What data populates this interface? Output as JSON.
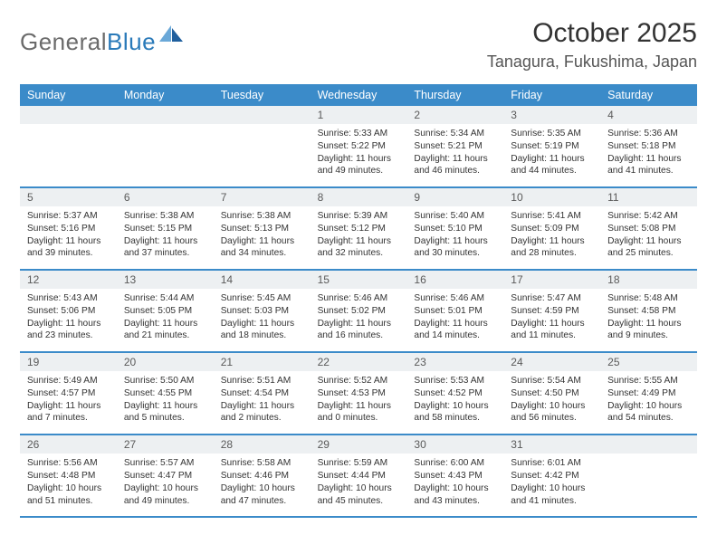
{
  "brand": {
    "name_a": "General",
    "name_b": "Blue"
  },
  "title": "October 2025",
  "location": "Tanagura, Fukushima, Japan",
  "day_names": [
    "Sunday",
    "Monday",
    "Tuesday",
    "Wednesday",
    "Thursday",
    "Friday",
    "Saturday"
  ],
  "colors": {
    "header_bg": "#3b8bc9",
    "header_text": "#ffffff",
    "daynum_bg": "#edf0f2",
    "border": "#3b8bc9",
    "body_text": "#333333",
    "logo_gray": "#6b6b6b",
    "logo_blue": "#2a7ab9",
    "sail_light": "#6aa8d8",
    "sail_dark": "#1f5f9e"
  },
  "weeks": [
    [
      {
        "n": "",
        "sr": "",
        "ss": "",
        "dl": ""
      },
      {
        "n": "",
        "sr": "",
        "ss": "",
        "dl": ""
      },
      {
        "n": "",
        "sr": "",
        "ss": "",
        "dl": ""
      },
      {
        "n": "1",
        "sr": "Sunrise: 5:33 AM",
        "ss": "Sunset: 5:22 PM",
        "dl": "Daylight: 11 hours and 49 minutes."
      },
      {
        "n": "2",
        "sr": "Sunrise: 5:34 AM",
        "ss": "Sunset: 5:21 PM",
        "dl": "Daylight: 11 hours and 46 minutes."
      },
      {
        "n": "3",
        "sr": "Sunrise: 5:35 AM",
        "ss": "Sunset: 5:19 PM",
        "dl": "Daylight: 11 hours and 44 minutes."
      },
      {
        "n": "4",
        "sr": "Sunrise: 5:36 AM",
        "ss": "Sunset: 5:18 PM",
        "dl": "Daylight: 11 hours and 41 minutes."
      }
    ],
    [
      {
        "n": "5",
        "sr": "Sunrise: 5:37 AM",
        "ss": "Sunset: 5:16 PM",
        "dl": "Daylight: 11 hours and 39 minutes."
      },
      {
        "n": "6",
        "sr": "Sunrise: 5:38 AM",
        "ss": "Sunset: 5:15 PM",
        "dl": "Daylight: 11 hours and 37 minutes."
      },
      {
        "n": "7",
        "sr": "Sunrise: 5:38 AM",
        "ss": "Sunset: 5:13 PM",
        "dl": "Daylight: 11 hours and 34 minutes."
      },
      {
        "n": "8",
        "sr": "Sunrise: 5:39 AM",
        "ss": "Sunset: 5:12 PM",
        "dl": "Daylight: 11 hours and 32 minutes."
      },
      {
        "n": "9",
        "sr": "Sunrise: 5:40 AM",
        "ss": "Sunset: 5:10 PM",
        "dl": "Daylight: 11 hours and 30 minutes."
      },
      {
        "n": "10",
        "sr": "Sunrise: 5:41 AM",
        "ss": "Sunset: 5:09 PM",
        "dl": "Daylight: 11 hours and 28 minutes."
      },
      {
        "n": "11",
        "sr": "Sunrise: 5:42 AM",
        "ss": "Sunset: 5:08 PM",
        "dl": "Daylight: 11 hours and 25 minutes."
      }
    ],
    [
      {
        "n": "12",
        "sr": "Sunrise: 5:43 AM",
        "ss": "Sunset: 5:06 PM",
        "dl": "Daylight: 11 hours and 23 minutes."
      },
      {
        "n": "13",
        "sr": "Sunrise: 5:44 AM",
        "ss": "Sunset: 5:05 PM",
        "dl": "Daylight: 11 hours and 21 minutes."
      },
      {
        "n": "14",
        "sr": "Sunrise: 5:45 AM",
        "ss": "Sunset: 5:03 PM",
        "dl": "Daylight: 11 hours and 18 minutes."
      },
      {
        "n": "15",
        "sr": "Sunrise: 5:46 AM",
        "ss": "Sunset: 5:02 PM",
        "dl": "Daylight: 11 hours and 16 minutes."
      },
      {
        "n": "16",
        "sr": "Sunrise: 5:46 AM",
        "ss": "Sunset: 5:01 PM",
        "dl": "Daylight: 11 hours and 14 minutes."
      },
      {
        "n": "17",
        "sr": "Sunrise: 5:47 AM",
        "ss": "Sunset: 4:59 PM",
        "dl": "Daylight: 11 hours and 11 minutes."
      },
      {
        "n": "18",
        "sr": "Sunrise: 5:48 AM",
        "ss": "Sunset: 4:58 PM",
        "dl": "Daylight: 11 hours and 9 minutes."
      }
    ],
    [
      {
        "n": "19",
        "sr": "Sunrise: 5:49 AM",
        "ss": "Sunset: 4:57 PM",
        "dl": "Daylight: 11 hours and 7 minutes."
      },
      {
        "n": "20",
        "sr": "Sunrise: 5:50 AM",
        "ss": "Sunset: 4:55 PM",
        "dl": "Daylight: 11 hours and 5 minutes."
      },
      {
        "n": "21",
        "sr": "Sunrise: 5:51 AM",
        "ss": "Sunset: 4:54 PM",
        "dl": "Daylight: 11 hours and 2 minutes."
      },
      {
        "n": "22",
        "sr": "Sunrise: 5:52 AM",
        "ss": "Sunset: 4:53 PM",
        "dl": "Daylight: 11 hours and 0 minutes."
      },
      {
        "n": "23",
        "sr": "Sunrise: 5:53 AM",
        "ss": "Sunset: 4:52 PM",
        "dl": "Daylight: 10 hours and 58 minutes."
      },
      {
        "n": "24",
        "sr": "Sunrise: 5:54 AM",
        "ss": "Sunset: 4:50 PM",
        "dl": "Daylight: 10 hours and 56 minutes."
      },
      {
        "n": "25",
        "sr": "Sunrise: 5:55 AM",
        "ss": "Sunset: 4:49 PM",
        "dl": "Daylight: 10 hours and 54 minutes."
      }
    ],
    [
      {
        "n": "26",
        "sr": "Sunrise: 5:56 AM",
        "ss": "Sunset: 4:48 PM",
        "dl": "Daylight: 10 hours and 51 minutes."
      },
      {
        "n": "27",
        "sr": "Sunrise: 5:57 AM",
        "ss": "Sunset: 4:47 PM",
        "dl": "Daylight: 10 hours and 49 minutes."
      },
      {
        "n": "28",
        "sr": "Sunrise: 5:58 AM",
        "ss": "Sunset: 4:46 PM",
        "dl": "Daylight: 10 hours and 47 minutes."
      },
      {
        "n": "29",
        "sr": "Sunrise: 5:59 AM",
        "ss": "Sunset: 4:44 PM",
        "dl": "Daylight: 10 hours and 45 minutes."
      },
      {
        "n": "30",
        "sr": "Sunrise: 6:00 AM",
        "ss": "Sunset: 4:43 PM",
        "dl": "Daylight: 10 hours and 43 minutes."
      },
      {
        "n": "31",
        "sr": "Sunrise: 6:01 AM",
        "ss": "Sunset: 4:42 PM",
        "dl": "Daylight: 10 hours and 41 minutes."
      },
      {
        "n": "",
        "sr": "",
        "ss": "",
        "dl": ""
      }
    ]
  ]
}
